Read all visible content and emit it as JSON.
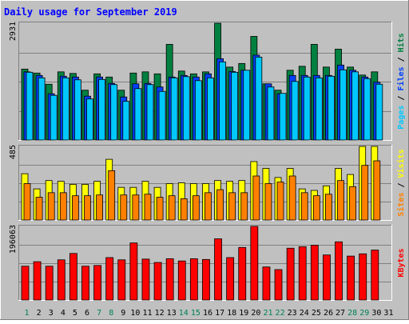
{
  "chart_data": [
    {
      "type": "bar",
      "title": "Daily usage for September 2019",
      "categories": [
        "1",
        "2",
        "3",
        "4",
        "5",
        "6",
        "7",
        "8",
        "9",
        "10",
        "11",
        "12",
        "13",
        "14",
        "15",
        "16",
        "17",
        "18",
        "19",
        "20",
        "21",
        "22",
        "23",
        "24",
        "25",
        "26",
        "27",
        "28",
        "29",
        "30",
        "31"
      ],
      "weekend_days": [
        "1",
        "7",
        "8",
        "14",
        "15",
        "21",
        "22",
        "28",
        "29"
      ],
      "ymax_label": "2931",
      "ylabel_parts": [
        "Pages",
        "Files",
        "Hits"
      ],
      "ylim": [
        0,
        2931
      ],
      "series": [
        {
          "name": "Hits",
          "values": [
            1780,
            1680,
            1400,
            1710,
            1670,
            1250,
            1660,
            1580,
            1250,
            1680,
            1710,
            1660,
            2400,
            1730,
            1660,
            1710,
            2930,
            1830,
            1920,
            2600,
            1410,
            1250,
            1750,
            1850,
            2400,
            1830,
            2280,
            1830,
            1630,
            1710,
            0
          ]
        },
        {
          "name": "Files",
          "values": [
            1710,
            1620,
            1160,
            1600,
            1580,
            1100,
            1580,
            1420,
            1080,
            1410,
            1420,
            1330,
            1580,
            1620,
            1580,
            1660,
            2040,
            1720,
            1750,
            2130,
            1410,
            1160,
            1620,
            1620,
            1620,
            1620,
            1880,
            1750,
            1580,
            1450,
            0
          ]
        },
        {
          "name": "Pages",
          "values": [
            1700,
            1560,
            1120,
            1560,
            1510,
            1030,
            1520,
            1390,
            970,
            1290,
            1390,
            1220,
            1560,
            1590,
            1490,
            1560,
            1960,
            1700,
            1750,
            2080,
            1330,
            1170,
            1470,
            1580,
            1560,
            1600,
            1760,
            1710,
            1540,
            1400,
            0
          ]
        }
      ],
      "colors": {
        "Hits": "#008040",
        "Files": "#0040ff",
        "Pages": "#00c8ff"
      }
    },
    {
      "type": "bar",
      "ymax_label": "485",
      "ylabel_parts": [
        "Sites",
        "Visits"
      ],
      "ylim": [
        0,
        485
      ],
      "series": [
        {
          "name": "Visits",
          "values": [
            305,
            205,
            260,
            255,
            235,
            235,
            255,
            400,
            215,
            215,
            255,
            215,
            240,
            245,
            240,
            240,
            260,
            255,
            260,
            385,
            340,
            280,
            340,
            205,
            195,
            225,
            340,
            300,
            485,
            485,
            0
          ]
        },
        {
          "name": "Sites",
          "values": [
            240,
            150,
            180,
            180,
            160,
            160,
            165,
            325,
            165,
            165,
            170,
            150,
            160,
            140,
            160,
            180,
            200,
            180,
            180,
            290,
            240,
            250,
            290,
            180,
            160,
            170,
            260,
            220,
            360,
            390,
            0
          ]
        }
      ],
      "colors": {
        "Visits": "#ffff00",
        "Sites": "#ff8000"
      }
    },
    {
      "type": "bar",
      "ymax_label": "196063",
      "ylabel_parts": [
        "KBytes"
      ],
      "ylim": [
        0,
        196063
      ],
      "series": [
        {
          "name": "KBytes",
          "values": [
            90000,
            102000,
            90000,
            107000,
            124000,
            90000,
            92000,
            113000,
            107000,
            152000,
            109000,
            100000,
            110000,
            104000,
            110000,
            108000,
            163000,
            113000,
            140000,
            196063,
            88000,
            81000,
            138000,
            142000,
            146000,
            120000,
            155000,
            117000,
            123000,
            133000,
            0
          ]
        }
      ],
      "colors": {
        "KBytes": "#ff0000"
      }
    }
  ]
}
